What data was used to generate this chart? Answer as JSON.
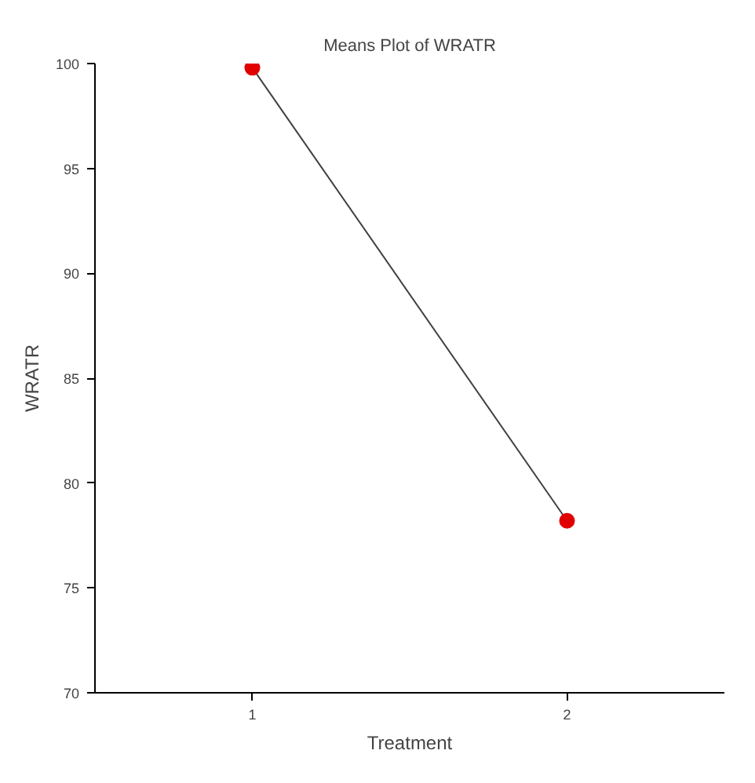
{
  "chart_data": {
    "type": "line",
    "title": "Means Plot of WRATR",
    "xlabel": "Treatment",
    "ylabel": "WRATR",
    "categories": [
      "1",
      "2"
    ],
    "series": [
      {
        "color": "#e00000",
        "values": [
          99.8,
          78.2
        ]
      }
    ],
    "ylim": [
      70,
      100
    ],
    "yticks": [
      70,
      75,
      80,
      85,
      90,
      95,
      100
    ],
    "grid": false,
    "marker": "circle",
    "line_style": "solid"
  }
}
